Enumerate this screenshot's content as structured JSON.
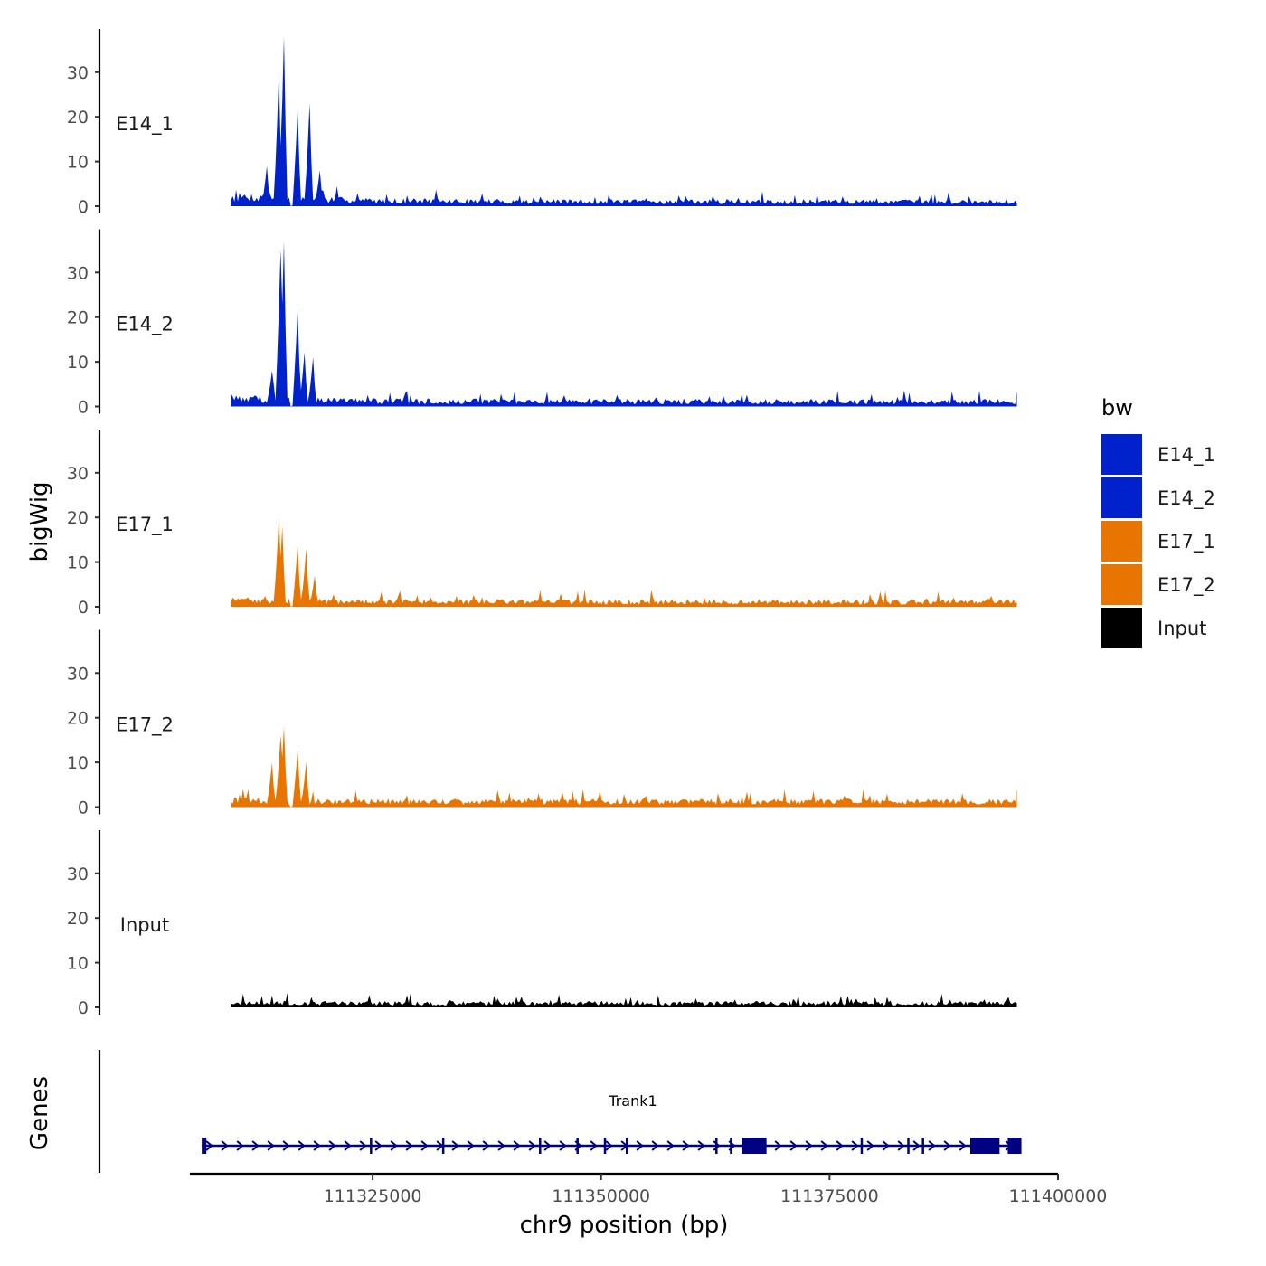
{
  "chart_data": {
    "type": "area",
    "y_axis_title": "bigWig",
    "x_axis_title": "chr9 position (bp)",
    "genes_axis_title": "Genes",
    "xlim": [
      111305000,
      111400000
    ],
    "x_ticks": [
      111325000,
      111350000,
      111375000,
      111400000
    ],
    "x_tick_labels": [
      "111325000",
      "111350000",
      "111375000",
      "111400000"
    ],
    "ylim": [
      0,
      38
    ],
    "y_ticks": [
      0,
      10,
      20,
      30
    ],
    "y_tick_labels": [
      "0",
      "10",
      "20",
      "30"
    ],
    "data_range": [
      111309500,
      111395500
    ],
    "legend": {
      "title": "bw",
      "position": "right",
      "entries": [
        {
          "label": "E14_1",
          "color": "#0022CC"
        },
        {
          "label": "E14_2",
          "color": "#0022CC"
        },
        {
          "label": "E17_1",
          "color": "#E87500"
        },
        {
          "label": "E17_2",
          "color": "#E87500"
        },
        {
          "label": "Input",
          "color": "#000000"
        }
      ]
    },
    "series": [
      {
        "name": "E14_1",
        "color": "#0022CC",
        "peaks": [
          [
            111314800,
            30
          ],
          [
            111315300,
            38
          ],
          [
            111316700,
            22
          ],
          [
            111318100,
            23
          ],
          [
            111316000,
            0.2
          ],
          [
            111313500,
            9
          ],
          [
            111319200,
            8
          ]
        ],
        "baseline": 2.0,
        "tail": 1.0
      },
      {
        "name": "E14_2",
        "color": "#0022CC",
        "peaks": [
          [
            111315000,
            35
          ],
          [
            111315300,
            37
          ],
          [
            111316700,
            22
          ],
          [
            111317600,
            12
          ],
          [
            111318500,
            11
          ],
          [
            111316000,
            0.2
          ],
          [
            111314000,
            8
          ],
          [
            111328500,
            3
          ],
          [
            111346000,
            2.5
          ]
        ],
        "baseline": 1.7,
        "tail": 1.1
      },
      {
        "name": "E17_1",
        "color": "#E87500",
        "peaks": [
          [
            111314800,
            20
          ],
          [
            111315200,
            18
          ],
          [
            111316700,
            14
          ],
          [
            111317800,
            13
          ],
          [
            111318700,
            7
          ],
          [
            111316000,
            0.2
          ]
        ],
        "baseline": 1.4,
        "tail": 1.1
      },
      {
        "name": "E17_2",
        "color": "#E87500",
        "peaks": [
          [
            111315000,
            16
          ],
          [
            111315300,
            18
          ],
          [
            111314000,
            10
          ],
          [
            111316700,
            13
          ],
          [
            111317700,
            10
          ],
          [
            111316000,
            0.2
          ],
          [
            111349800,
            3.5
          ]
        ],
        "baseline": 1.4,
        "tail": 1.2
      },
      {
        "name": "Input",
        "color": "#000000",
        "peaks": [
          [
            111394500,
            2.4
          ],
          [
            111392000,
            1.8
          ],
          [
            111350000,
            1.5
          ]
        ],
        "baseline": 1.0,
        "tail": 0.9
      }
    ],
    "gene": {
      "name": "Trank1",
      "strand": "+",
      "color": "#000080",
      "start": 111306300,
      "end": 111395500,
      "exons": [
        [
          111306300,
          111306800
        ],
        [
          111324700,
          111324900
        ],
        [
          111332600,
          111332800
        ],
        [
          111343200,
          111343400
        ],
        [
          111347300,
          111347500
        ],
        [
          111350300,
          111350500
        ],
        [
          111352700,
          111352900
        ],
        [
          111362500,
          111362700
        ],
        [
          111364100,
          111364300
        ],
        [
          111365400,
          111368100
        ],
        [
          111378400,
          111378600
        ],
        [
          111383500,
          111383700
        ],
        [
          111385100,
          111385300
        ],
        [
          111390400,
          111390600
        ],
        [
          111392400,
          111392600
        ],
        [
          111393300,
          111393500
        ],
        [
          111390500,
          111393600
        ],
        [
          111394500,
          111396000
        ]
      ]
    }
  }
}
